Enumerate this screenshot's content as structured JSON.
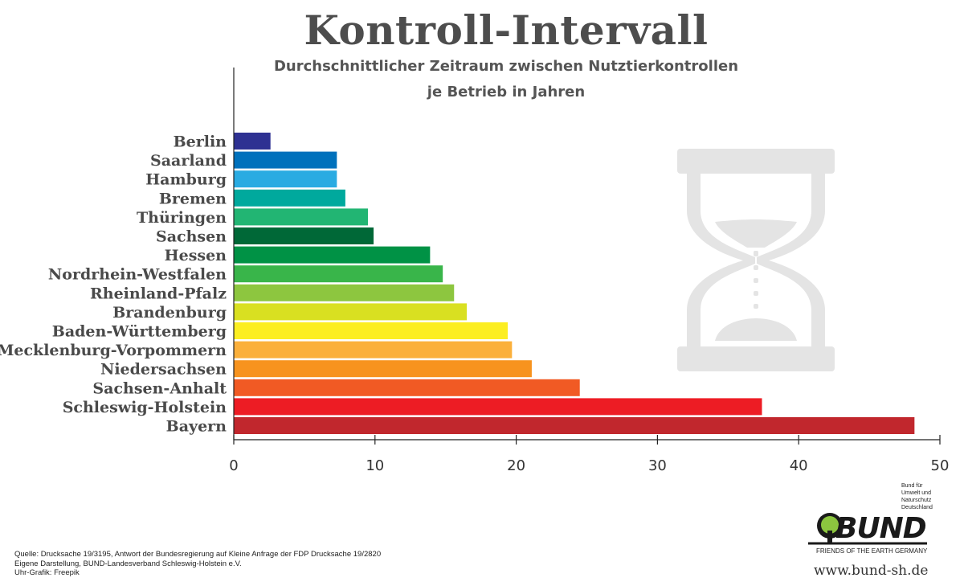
{
  "title": "Kontroll-Intervall",
  "subtitle_line1": "Durchschnittlicher Zeitraum zwischen Nutztierkontrollen",
  "subtitle_line2": "je Betrieb in Jahren",
  "icon": "hourglass-icon",
  "chart_data": {
    "type": "bar",
    "orientation": "horizontal",
    "categories": [
      "Berlin",
      "Saarland",
      "Hamburg",
      "Bremen",
      "Thüringen",
      "Sachsen",
      "Hessen",
      "Nordrhein-Westfalen",
      "Rheinland-Pfalz",
      "Brandenburg",
      "Baden-Württemberg",
      "Mecklenburg-Vorpommern",
      "Niedersachsen",
      "Sachsen-Anhalt",
      "Schleswig-Holstein",
      "Bayern"
    ],
    "values": [
      2.6,
      7.3,
      7.3,
      7.9,
      9.5,
      9.9,
      13.9,
      14.8,
      15.6,
      16.5,
      19.4,
      19.7,
      21.1,
      24.5,
      37.4,
      48.2
    ],
    "colors": [
      "#2e3192",
      "#0071bc",
      "#29abe2",
      "#00a99d",
      "#22b573",
      "#006837",
      "#009245",
      "#39b54a",
      "#8dc63f",
      "#d9e021",
      "#fcee21",
      "#fbb03b",
      "#f7931e",
      "#f15a24",
      "#ed1c24",
      "#c1272d"
    ],
    "xlim": [
      0,
      50
    ],
    "xticks": [
      0,
      10,
      20,
      30,
      40,
      50
    ],
    "grid": false,
    "legend": "none"
  },
  "source": {
    "line1": "Quelle: Drucksache 19/3195, Antwort der Bundesregierung auf Kleine Anfrage der FDP Drucksache 19/2820",
    "line2": "Eigene Darstellung, BUND-Landesverband Schleswig-Holstein e.V.",
    "line3": "Uhr-Grafik: Freepik"
  },
  "logo": {
    "small_line1": "Bund für",
    "small_line2": "Umwelt und",
    "small_line3": "Naturschutz",
    "small_line4": "Deutschland",
    "wordmark": "BUND",
    "tagline": "FRIENDS OF THE EARTH GERMANY"
  },
  "url": "www.bund-sh.de"
}
